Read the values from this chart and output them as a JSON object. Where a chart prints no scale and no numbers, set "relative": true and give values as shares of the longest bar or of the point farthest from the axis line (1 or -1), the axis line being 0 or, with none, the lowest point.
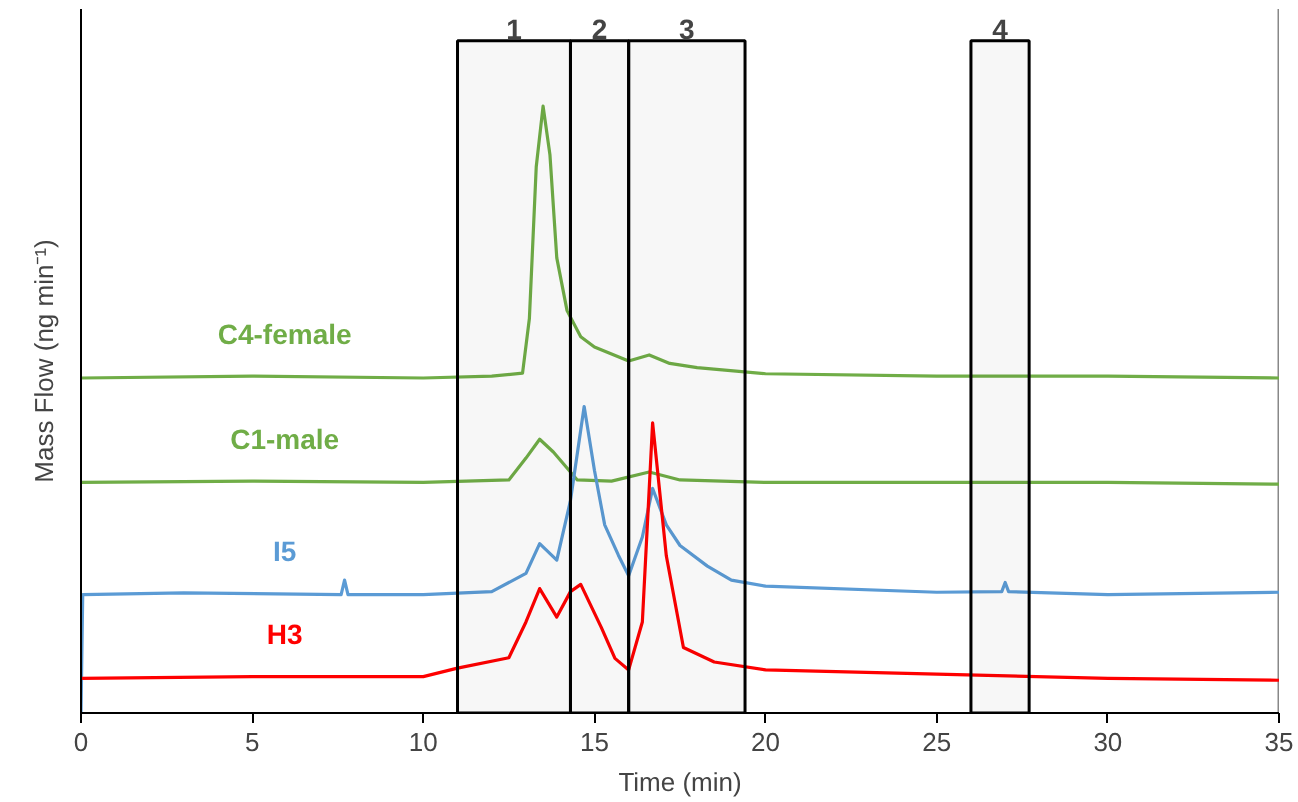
{
  "chart_data": {
    "type": "line",
    "relative": true,
    "xlabel": "Time (min)",
    "ylabel": "Mass Flow (ng min⁻¹)",
    "xlim": [
      0,
      35
    ],
    "xticks": [
      0,
      5,
      10,
      15,
      20,
      25,
      30,
      35
    ],
    "grid": false,
    "legend": false,
    "marker": "none",
    "line_style": "solid",
    "series": [
      {
        "name": "C4-female",
        "color": "#70ad47",
        "x": [
          0,
          5,
          10,
          12,
          12.9,
          13.1,
          13.3,
          13.5,
          13.7,
          13.9,
          14.2,
          14.6,
          15,
          16,
          16.6,
          17.2,
          18,
          20,
          25,
          30,
          35
        ],
        "values": [
          0.552,
          0.555,
          0.552,
          0.555,
          0.56,
          0.65,
          0.9,
          1.0,
          0.92,
          0.75,
          0.663,
          0.62,
          0.603,
          0.58,
          0.59,
          0.576,
          0.569,
          0.559,
          0.555,
          0.555,
          0.552
        ]
      },
      {
        "name": "C1-male",
        "color": "#70ad47",
        "x": [
          0,
          5,
          10,
          12.5,
          13,
          13.4,
          13.8,
          14.5,
          15.5,
          16.6,
          17.5,
          20,
          25,
          30,
          35
        ],
        "values": [
          0.38,
          0.382,
          0.38,
          0.384,
          0.42,
          0.451,
          0.43,
          0.384,
          0.382,
          0.397,
          0.384,
          0.38,
          0.38,
          0.38,
          0.377
        ]
      },
      {
        "name": "I5",
        "color": "#5b9bd5",
        "x": [
          0,
          0.05,
          3,
          7.6,
          7.7,
          7.8,
          10,
          12,
          13,
          13.4,
          13.9,
          14.3,
          14.7,
          15,
          15.3,
          15.7,
          16,
          16.4,
          16.7,
          17.1,
          17.5,
          18.3,
          19,
          20,
          25,
          26.9,
          27,
          27.1,
          30,
          35
        ],
        "values": [
          0,
          0.195,
          0.198,
          0.195,
          0.219,
          0.195,
          0.195,
          0.2,
          0.23,
          0.279,
          0.252,
          0.35,
          0.505,
          0.4,
          0.31,
          0.26,
          0.226,
          0.29,
          0.37,
          0.31,
          0.276,
          0.242,
          0.219,
          0.209,
          0.199,
          0.2,
          0.215,
          0.2,
          0.195,
          0.199
        ]
      },
      {
        "name": "H3",
        "color": "#ff0000",
        "x": [
          0,
          5,
          10,
          11,
          12.5,
          13,
          13.4,
          13.9,
          14.3,
          14.6,
          15.2,
          15.6,
          16,
          16.4,
          16.7,
          17.1,
          17.6,
          18.5,
          20,
          25,
          30,
          35
        ],
        "values": [
          0.057,
          0.06,
          0.06,
          0.074,
          0.091,
          0.15,
          0.205,
          0.158,
          0.2,
          0.212,
          0.141,
          0.09,
          0.071,
          0.15,
          0.478,
          0.259,
          0.108,
          0.084,
          0.071,
          0.064,
          0.057,
          0.054
        ]
      }
    ],
    "bands": [
      {
        "axis": "x",
        "from": 11,
        "to": 14.3,
        "label": "1",
        "color": "#000000"
      },
      {
        "axis": "x",
        "from": 14.3,
        "to": 16,
        "label": "2",
        "color": "#000000"
      },
      {
        "axis": "x",
        "from": 16,
        "to": 19.4,
        "label": "3",
        "color": "#000000"
      },
      {
        "axis": "x",
        "from": 26,
        "to": 27.7,
        "label": "4",
        "color": "#000000"
      }
    ]
  }
}
